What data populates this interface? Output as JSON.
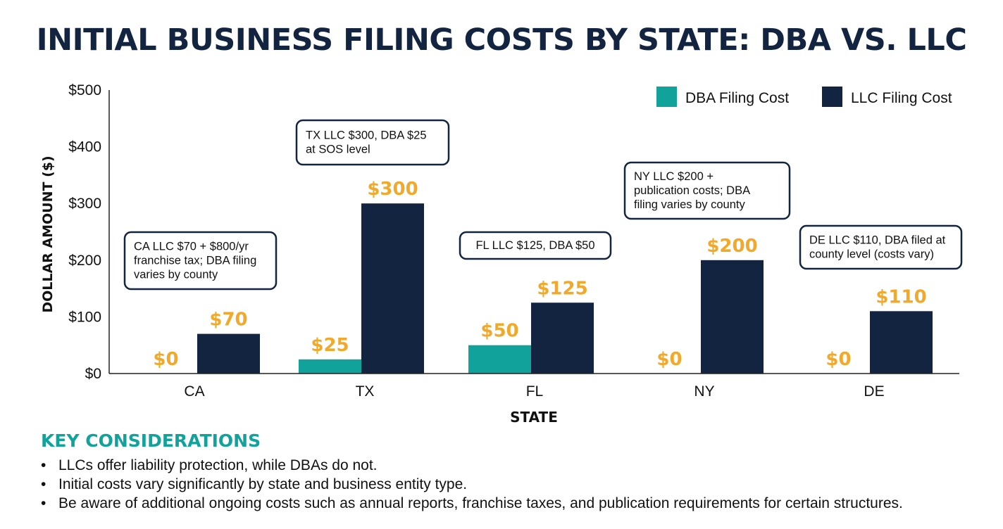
{
  "chart_data": {
    "type": "bar",
    "title": "INITIAL BUSINESS FILING COSTS BY STATE: DBA VS. LLC",
    "xlabel": "STATE",
    "ylabel": "DOLLAR AMOUNT ($)",
    "categories": [
      "CA",
      "TX",
      "FL",
      "NY",
      "DE"
    ],
    "series": [
      {
        "name": "DBA Filing Cost",
        "color": "#12a29c",
        "values": [
          0,
          25,
          50,
          0,
          0
        ],
        "labels": [
          "$0",
          "$25",
          "$50",
          "$0",
          "$0"
        ]
      },
      {
        "name": "LLC Filing Cost",
        "color": "#132440",
        "values": [
          70,
          300,
          125,
          200,
          110
        ],
        "labels": [
          "$70",
          "$300",
          "$125",
          "$200",
          "$110"
        ]
      }
    ],
    "ylim": [
      0,
      500
    ],
    "yticks": [
      0,
      100,
      200,
      300,
      400,
      500
    ],
    "ytick_labels": [
      "$0",
      "$100",
      "$200",
      "$300",
      "$400",
      "$500"
    ],
    "value_label_color": "#f0a92a",
    "grid": false,
    "legend_position": "top-right",
    "annotations": [
      {
        "category": "CA",
        "lines": [
          "CA LLC $70 + $800/yr",
          "franchise tax; DBA filing",
          "varies by county"
        ]
      },
      {
        "category": "TX",
        "lines": [
          "TX LLC $300, DBA $25",
          "at SOS level"
        ]
      },
      {
        "category": "FL",
        "lines": [
          "FL LLC $125, DBA $50"
        ]
      },
      {
        "category": "NY",
        "lines": [
          "NY LLC $200 +",
          "publication costs; DBA",
          "filing varies by county"
        ]
      },
      {
        "category": "DE",
        "lines": [
          "DE LLC $110, DBA filed at",
          "county level (costs vary)"
        ]
      }
    ]
  },
  "key_considerations": {
    "title": "KEY CONSIDERATIONS",
    "bullet": "•",
    "items": [
      "LLCs offer liability protection, while DBAs do not.",
      "Initial costs vary significantly by state and business entity type.",
      "Be aware of additional ongoing costs such as annual reports, franchise taxes, and publication requirements for certain structures."
    ]
  }
}
